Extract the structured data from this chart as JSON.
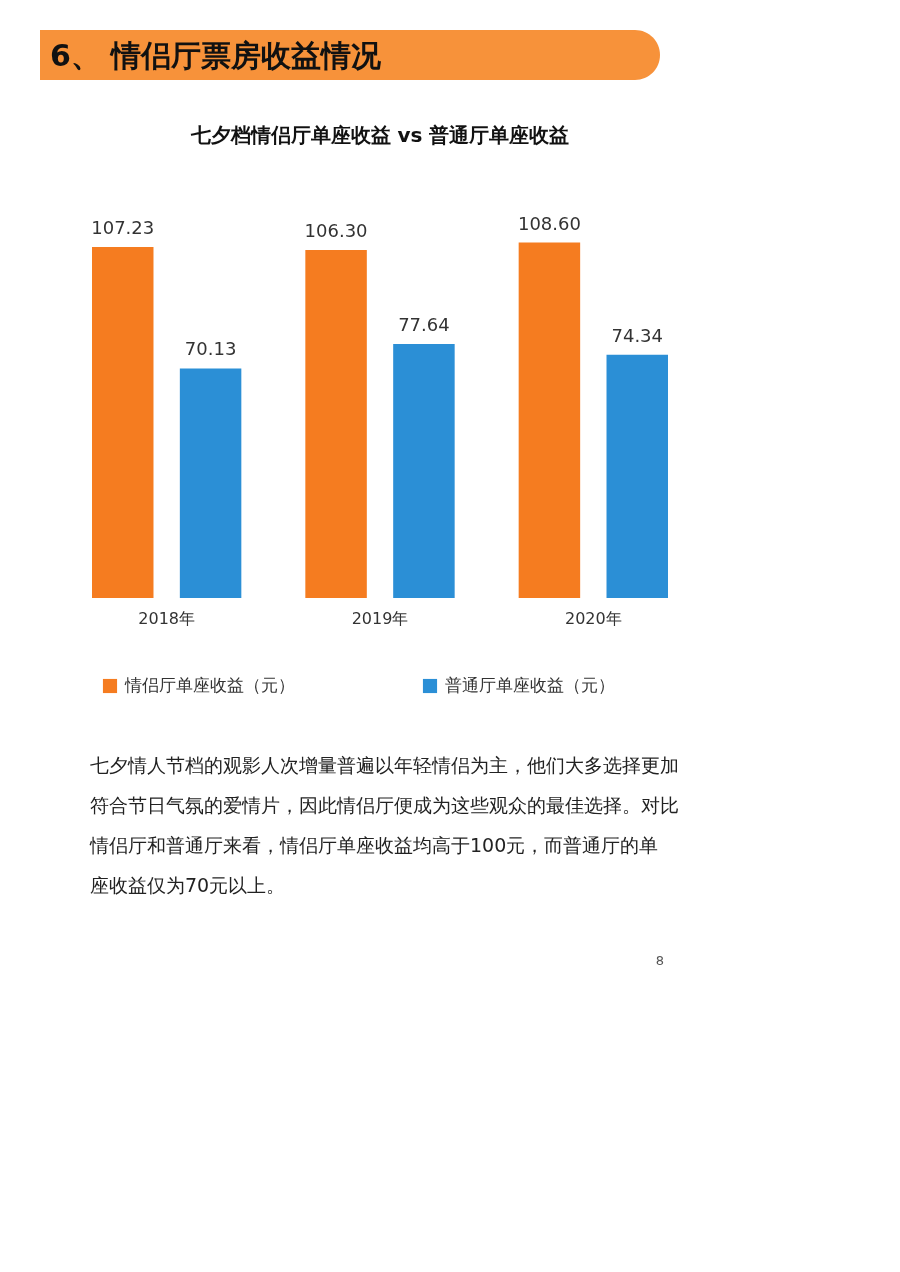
{
  "chart_data": {
    "type": "bar",
    "title": "6、 情侣厅票房收益情况",
    "subtitle": "七夕档情侣厅单座收益 vs 普通厅单座收益",
    "categories": [
      "2018年",
      "2019年",
      "2020年"
    ],
    "series": [
      {
        "name": "情侣厅单座收益（元）",
        "color": "#f57c20",
        "values": [
          107.23,
          106.3,
          108.6
        ],
        "value_labels": [
          "107.23",
          "106.30",
          "108.60"
        ]
      },
      {
        "name": "普通厅单座收益（元）",
        "color": "#2b8fd6",
        "values": [
          70.13,
          77.64,
          74.34
        ],
        "value_labels": [
          "70.13",
          "77.64",
          "74.34"
        ]
      }
    ],
    "legend": "bottom",
    "annotations": [
      "七夕情人节档的观影人次增量普遍以年轻情侣为主，他们大多选择更加符合节日气氛的爱情片，因此情侣厅便成为这些观众的最佳选择。对比情侣厅和普通厅来看，情侣厅单座收益均高于100元，而普通厅的单座收益仅为70元以上。",
      "8"
    ]
  }
}
